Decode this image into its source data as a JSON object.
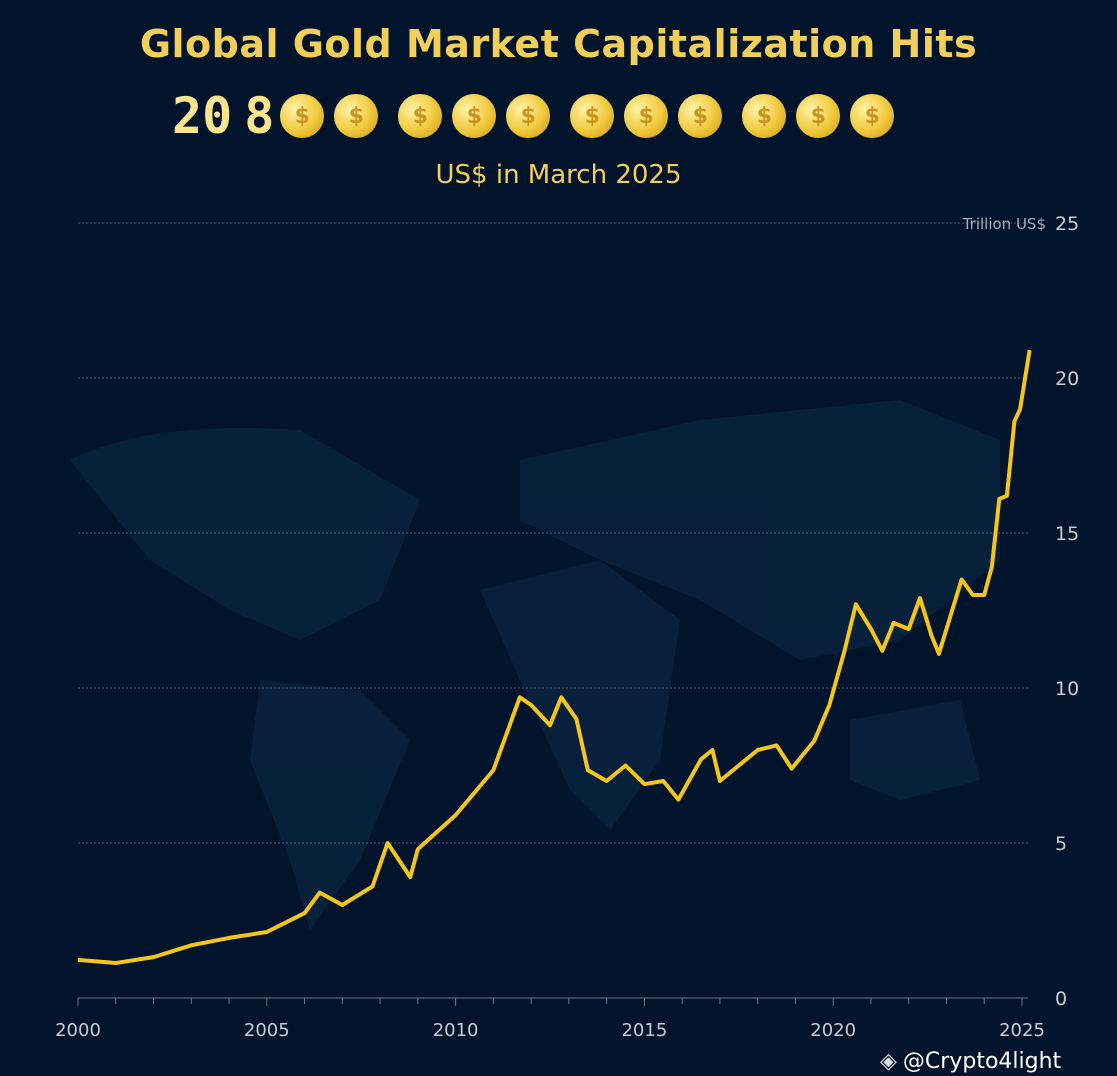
{
  "header": {
    "title": "Global Gold Market Capitalization Hits",
    "big_number_digits": [
      "20",
      "8"
    ],
    "coin_icon": "gold-dollar-coin-icon",
    "coin_groups": [
      2,
      3,
      3,
      3
    ],
    "subtitle": "US$ in March 2025"
  },
  "watermark": {
    "text": "@Crypto4light",
    "icon": "binance-logo-icon"
  },
  "chart_data": {
    "type": "line",
    "title": "Global Gold Market Capitalization Hits 20 8 US$ in March 2025",
    "ylabel": "Trillion US$",
    "xlabel": "",
    "xlim": [
      2000,
      2025.3
    ],
    "ylim": [
      0,
      25
    ],
    "x_ticks": [
      2000,
      2005,
      2010,
      2015,
      2020,
      2025
    ],
    "y_ticks": [
      0,
      5,
      10,
      15,
      20,
      25
    ],
    "grid": "horizontal dotted",
    "y_axis_side": "right",
    "line_color": "#f5c518",
    "series": [
      {
        "x": [
          2000,
          2001,
          2002,
          2003,
          2004,
          2005,
          2006,
          2006.4,
          2007,
          2007.8,
          2008.2,
          2008.8,
          2009,
          2010,
          2011,
          2011.7,
          2012,
          2012.5,
          2012.8,
          2013.2,
          2013.5,
          2014,
          2014.5,
          2015,
          2015.5,
          2015.9,
          2016.5,
          2016.8,
          2017,
          2017.5,
          2018,
          2018.5,
          2018.9,
          2019.5,
          2019.9,
          2020.3,
          2020.6,
          2021,
          2021.3,
          2021.6,
          2022,
          2022.3,
          2022.6,
          2022.8,
          2023.2,
          2023.4,
          2023.7,
          2024,
          2024.2,
          2024.4,
          2024.6,
          2024.8,
          2024.95,
          2025.2
        ],
        "y": [
          1.23,
          1.13,
          1.32,
          1.7,
          1.94,
          2.13,
          2.74,
          3.4,
          3.0,
          3.6,
          5.0,
          3.9,
          4.8,
          5.9,
          7.35,
          9.7,
          9.45,
          8.8,
          9.7,
          9.0,
          7.35,
          7.0,
          7.5,
          6.9,
          7.0,
          6.4,
          7.7,
          8.0,
          7.0,
          7.5,
          8.0,
          8.15,
          7.4,
          8.3,
          9.45,
          11.2,
          12.7,
          11.9,
          11.2,
          12.1,
          11.9,
          12.9,
          11.7,
          11.1,
          12.7,
          13.5,
          13.0,
          13.0,
          13.9,
          16.1,
          16.2,
          18.6,
          19.0,
          20.9
        ]
      }
    ]
  }
}
